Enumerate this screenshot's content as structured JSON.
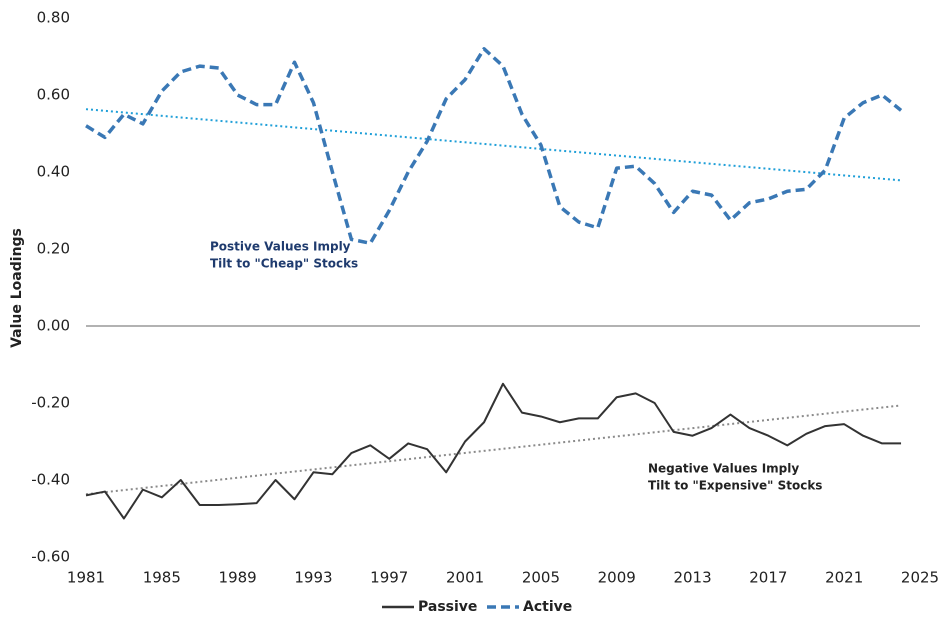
{
  "chart_data": {
    "type": "line",
    "y_label": "Value Loadings",
    "x": [
      1981,
      1982,
      1983,
      1984,
      1985,
      1986,
      1987,
      1988,
      1989,
      1990,
      1991,
      1992,
      1993,
      1994,
      1995,
      1996,
      1997,
      1998,
      1999,
      2000,
      2001,
      2002,
      2003,
      2004,
      2005,
      2006,
      2007,
      2008,
      2009,
      2010,
      2011,
      2012,
      2013,
      2014,
      2015,
      2016,
      2017,
      2018,
      2019,
      2020,
      2021,
      2022,
      2023,
      2024
    ],
    "series": [
      {
        "name": "Passive",
        "color": "#333333",
        "dash": "solid",
        "trendline_color": "#8a8a8a",
        "values": [
          -0.44,
          -0.43,
          -0.5,
          -0.425,
          -0.445,
          -0.4,
          -0.465,
          -0.465,
          -0.463,
          -0.46,
          -0.4,
          -0.45,
          -0.38,
          -0.385,
          -0.33,
          -0.31,
          -0.345,
          -0.305,
          -0.32,
          -0.38,
          -0.3,
          -0.25,
          -0.15,
          -0.225,
          -0.235,
          -0.25,
          -0.24,
          -0.24,
          -0.185,
          -0.175,
          -0.2,
          -0.275,
          -0.285,
          -0.265,
          -0.23,
          -0.265,
          -0.285,
          -0.31,
          -0.28,
          -0.26,
          -0.255,
          -0.285,
          -0.305,
          -0.305
        ]
      },
      {
        "name": "Active",
        "color": "#3a78b5",
        "dash": "dashed",
        "trendline_color": "#1f9fd8",
        "values": [
          0.52,
          0.49,
          0.55,
          0.525,
          0.61,
          0.66,
          0.675,
          0.67,
          0.6,
          0.575,
          0.575,
          0.685,
          0.58,
          0.4,
          0.225,
          0.215,
          0.3,
          0.4,
          0.48,
          0.59,
          0.64,
          0.72,
          0.675,
          0.55,
          0.47,
          0.31,
          0.27,
          0.255,
          0.41,
          0.415,
          0.37,
          0.295,
          0.35,
          0.34,
          0.275,
          0.32,
          0.33,
          0.35,
          0.355,
          0.405,
          0.54,
          0.58,
          0.6,
          0.56
        ]
      }
    ],
    "trendline": true,
    "xlim": [
      1981,
      2025
    ],
    "xticks": [
      1981,
      1985,
      1989,
      1993,
      1997,
      2001,
      2005,
      2009,
      2013,
      2017,
      2021,
      2025
    ],
    "ylim": [
      -0.6,
      0.8
    ],
    "yticks": [
      {
        "value": -0.6,
        "label": "-0.60"
      },
      {
        "value": -0.4,
        "label": "-0.40"
      },
      {
        "value": -0.2,
        "label": "-0.20"
      },
      {
        "value": 0,
        "label": "0.00"
      },
      {
        "value": 0.2,
        "label": "0.20"
      },
      {
        "value": 0.4,
        "label": "0.40"
      },
      {
        "value": 0.6,
        "label": "0.60"
      },
      {
        "value": 0.8,
        "label": "0.80"
      }
    ],
    "zero_line": true,
    "legend": "bottom",
    "annotations": [
      {
        "lines": [
          "Postive Values Imply",
          "Tilt to \"Cheap\" Stocks"
        ],
        "color": "#1f3b6e"
      },
      {
        "lines": [
          "Negative Values Imply",
          "Tilt to \"Expensive\" Stocks"
        ],
        "color": "#222222"
      }
    ]
  }
}
